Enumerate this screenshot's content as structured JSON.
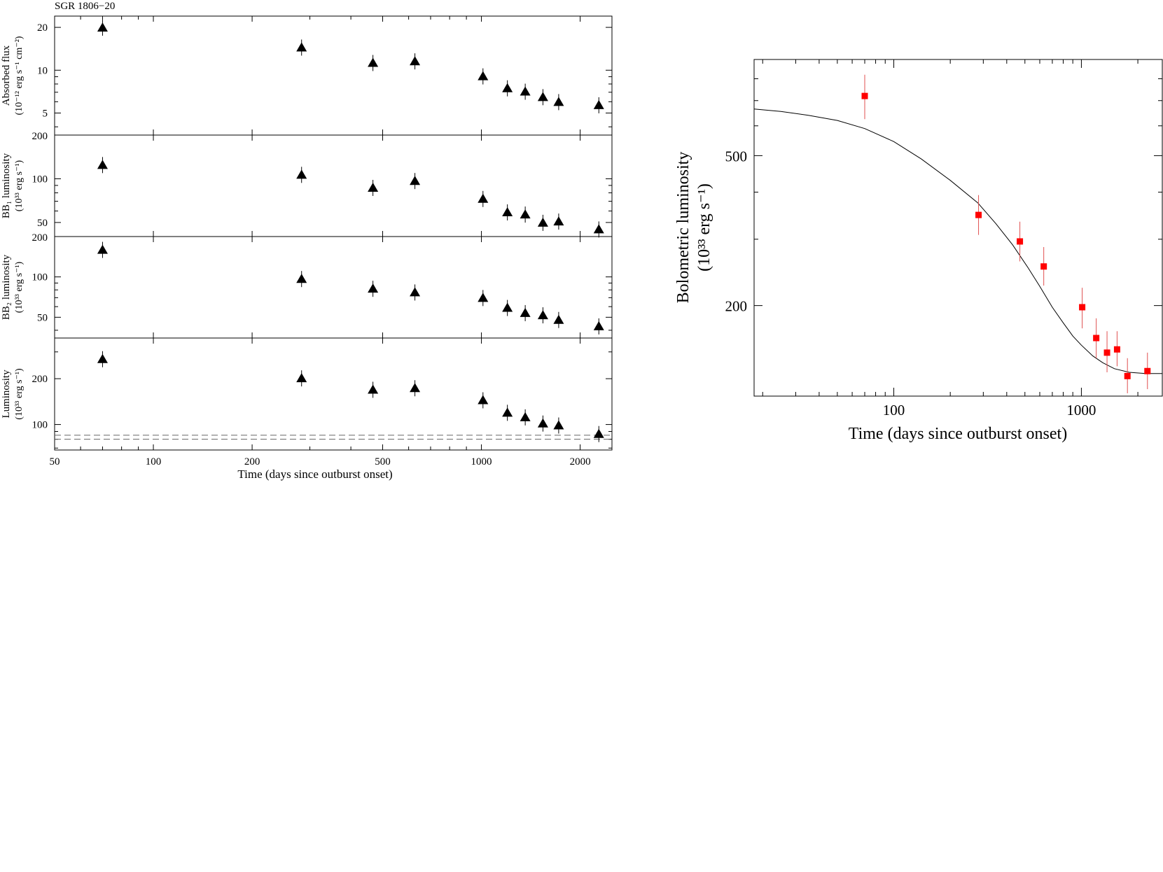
{
  "chart_data": [
    {
      "type": "scatter",
      "title": "SGR 1806−20",
      "xlabel": "Time (days since outburst onset)",
      "x_scale": "log",
      "xlim": [
        50,
        2500
      ],
      "x_ticks": [
        50,
        100,
        200,
        500,
        1000,
        2000
      ],
      "x_tick_labels": [
        "50",
        "100",
        "200",
        "500",
        "1000",
        "2000"
      ],
      "x": [
        70,
        283,
        467,
        627,
        1011,
        1200,
        1360,
        1540,
        1720,
        2280
      ],
      "marker": "filled triangle",
      "panels": [
        {
          "name": "flux",
          "ylabel_lines": [
            "Absorbed flux",
            "(10⁻¹² erg s⁻¹ cm⁻²)"
          ],
          "y_scale": "log",
          "ylim": [
            3.5,
            24
          ],
          "y_ticks": [
            5,
            10,
            20
          ],
          "y_tick_labels": [
            "5",
            "10",
            "20"
          ],
          "bottom_tick_label": "200",
          "values": [
            20,
            14.5,
            11.3,
            11.6,
            9.1,
            7.5,
            7.1,
            6.5,
            6.0,
            5.7
          ]
        },
        {
          "name": "bb1",
          "ylabel_lines": [
            "BB₁ luminosity",
            "(10³³ erg s⁻¹)"
          ],
          "y_scale": "log",
          "ylim": [
            40,
            200
          ],
          "y_ticks": [
            50,
            100
          ],
          "y_tick_labels": [
            "50",
            "100"
          ],
          "bottom_tick_label": "200",
          "values": [
            125,
            107,
            87,
            97,
            73,
            59,
            57,
            50,
            51,
            45
          ]
        },
        {
          "name": "bb2",
          "ylabel_lines": [
            "BB₂ luminosity",
            "(10³³ erg s⁻¹)"
          ],
          "y_scale": "log",
          "ylim": [
            35,
            200
          ],
          "y_ticks": [
            50,
            100
          ],
          "y_tick_labels": [
            "50",
            "100"
          ],
          "values": [
            160,
            97,
            82,
            77,
            70,
            59,
            54,
            52,
            48,
            43
          ]
        },
        {
          "name": "lum",
          "ylabel_lines": [
            "Luminosity",
            "(10³³ erg s⁻¹)"
          ],
          "y_scale": "log",
          "ylim": [
            68,
            370
          ],
          "y_ticks": [
            100,
            200
          ],
          "y_tick_labels": [
            "100",
            "200"
          ],
          "values": [
            270,
            202,
            170,
            174,
            145,
            120,
            112,
            102,
            99,
            87
          ],
          "dashed_lines": [
            85,
            80
          ]
        }
      ]
    },
    {
      "type": "scatter",
      "xlabel": "Time (days since outburst onset)",
      "ylabel_lines": [
        "Bolometric luminosity",
        "(10³³ erg s⁻¹)"
      ],
      "x_scale": "log",
      "y_scale": "log",
      "xlim": [
        18,
        2700
      ],
      "ylim": [
        115,
        900
      ],
      "x_ticks": [
        100,
        1000
      ],
      "x_tick_labels": [
        "100",
        "1000"
      ],
      "y_ticks": [
        200,
        500
      ],
      "y_tick_labels": [
        "200",
        "500"
      ],
      "marker": "filled square",
      "marker_color": "#ff0000",
      "errorbar_color": "#e05050",
      "points": [
        {
          "x": 70,
          "y": 720,
          "err_up": 100,
          "err_down": 95
        },
        {
          "x": 283,
          "y": 348,
          "err_up": 45,
          "err_down": 40
        },
        {
          "x": 470,
          "y": 296,
          "err_up": 38,
          "err_down": 34
        },
        {
          "x": 630,
          "y": 254,
          "err_up": 32,
          "err_down": 28
        },
        {
          "x": 1010,
          "y": 198,
          "err_up": 25,
          "err_down": 24
        },
        {
          "x": 1200,
          "y": 164,
          "err_up": 21,
          "err_down": 19
        },
        {
          "x": 1370,
          "y": 150,
          "err_up": 21,
          "err_down": 17
        },
        {
          "x": 1550,
          "y": 153,
          "err_up": 18,
          "err_down": 15
        },
        {
          "x": 1760,
          "y": 130,
          "err_up": 15,
          "err_down": 13
        },
        {
          "x": 2250,
          "y": 134,
          "err_up": 16,
          "err_down": 14
        }
      ],
      "model_curve": {
        "x": [
          18,
          25,
          35,
          50,
          70,
          100,
          140,
          200,
          280,
          350,
          430,
          520,
          600,
          700,
          800,
          900,
          1000,
          1150,
          1300,
          1500,
          1800,
          2200,
          2700
        ],
        "y": [
          665,
          655,
          640,
          620,
          590,
          545,
          490,
          430,
          375,
          330,
          290,
          252,
          225,
          198,
          180,
          166,
          157,
          147,
          141,
          136,
          133,
          132,
          132
        ]
      }
    }
  ]
}
